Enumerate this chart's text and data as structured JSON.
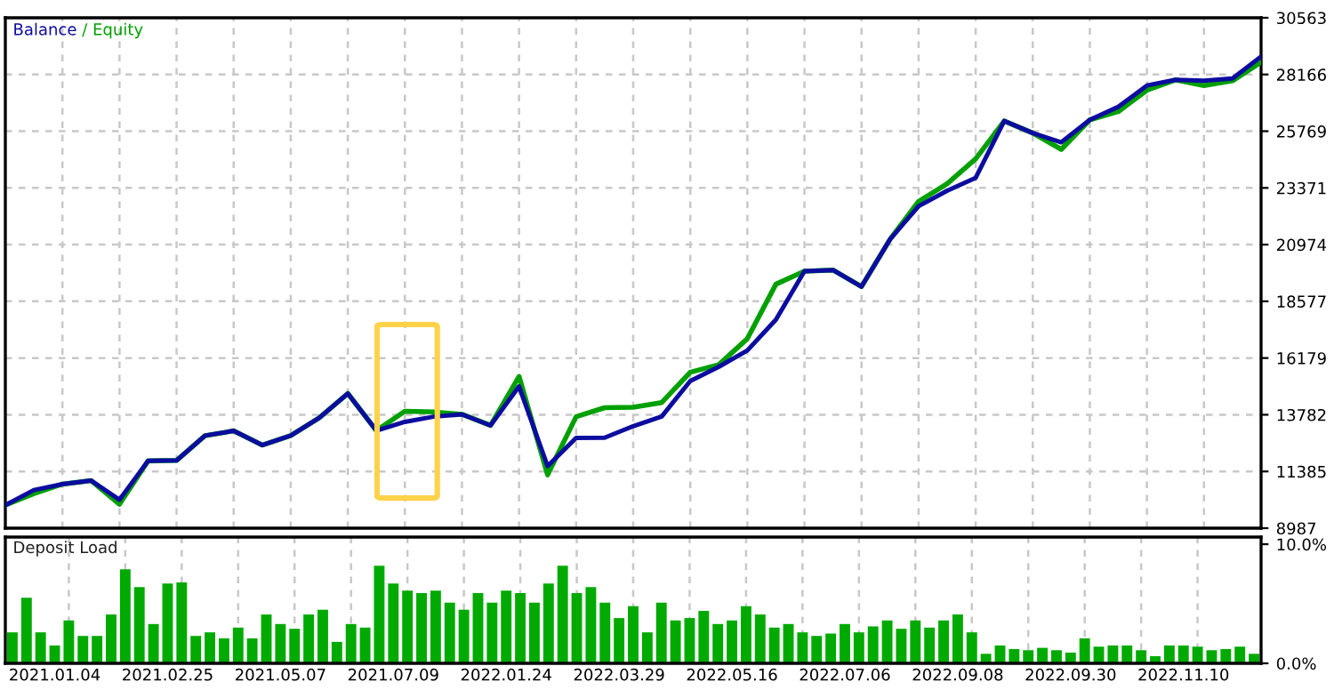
{
  "chart_data": [
    {
      "type": "line",
      "categories": [
        null,
        null,
        null,
        null,
        null,
        null,
        null,
        null,
        null,
        null,
        null,
        null,
        null,
        null,
        null,
        null,
        null,
        null,
        null,
        null,
        null,
        null,
        null,
        null,
        null,
        null,
        null,
        null,
        null,
        null,
        null,
        null,
        null,
        null,
        null,
        null,
        null,
        null,
        null,
        null,
        null,
        null,
        null,
        null,
        null
      ],
      "series": [
        {
          "name": "Balance",
          "color": "#0c0ca0",
          "values": [
            9960,
            10600,
            10850,
            11000,
            10190,
            11830,
            11850,
            12900,
            13100,
            12500,
            12900,
            13650,
            14680,
            13110,
            13480,
            13700,
            13800,
            13330,
            14980,
            11610,
            12800,
            12810,
            13300,
            13710,
            15210,
            15810,
            16500,
            17800,
            19850,
            19900,
            19200,
            21200,
            22600,
            23250,
            23800,
            26200,
            25690,
            25300,
            26250,
            26800,
            27700,
            27940,
            27900,
            28000,
            28920
          ]
        },
        {
          "name": "Equity",
          "color": "#00a000",
          "values": [
            9960,
            10450,
            10850,
            11000,
            10000,
            11830,
            11850,
            12900,
            13100,
            12500,
            12900,
            13650,
            14680,
            13110,
            13930,
            13900,
            13800,
            13330,
            15400,
            11240,
            13700,
            14080,
            14100,
            14300,
            15580,
            15900,
            17000,
            19300,
            19850,
            19900,
            19200,
            21200,
            22800,
            23550,
            24600,
            26200,
            25690,
            25000,
            26250,
            26600,
            27500,
            27940,
            27700,
            27900,
            28690
          ]
        }
      ],
      "annotations": [
        "/"
      ],
      "ylim": [
        8987,
        30563
      ],
      "yticks": [
        8987,
        11385,
        13782,
        16179,
        18577,
        20974,
        23371,
        25769,
        28166,
        30563
      ],
      "grid": true,
      "legend": "top left",
      "tick_labels": "y"
    },
    {
      "type": "bar",
      "title": "Deposit Load",
      "color": "#00aa00",
      "categories": [
        null,
        null,
        null,
        "2021.01.04",
        null,
        null,
        null,
        null,
        null,
        null,
        null,
        "2021.02.25",
        null,
        null,
        null,
        null,
        null,
        null,
        null,
        "2021.05.07",
        null,
        null,
        null,
        null,
        null,
        null,
        null,
        "2021.07.09",
        null,
        null,
        null,
        null,
        null,
        null,
        null,
        "2022.01.24",
        null,
        null,
        null,
        null,
        null,
        null,
        null,
        "2022.03.29",
        null,
        null,
        null,
        null,
        null,
        null,
        null,
        "2022.05.16",
        null,
        null,
        null,
        null,
        null,
        null,
        null,
        "2022.07.06",
        null,
        null,
        null,
        null,
        null,
        null,
        null,
        "2022.09.08",
        null,
        null,
        null,
        null,
        null,
        null,
        null,
        "2022.09.30",
        null,
        null,
        null,
        null,
        null,
        null,
        null,
        "2022.11.10",
        null,
        null,
        null,
        null,
        null
      ],
      "values": [
        2.6,
        5.5,
        2.6,
        1.5,
        3.6,
        2.3,
        2.3,
        4.1,
        7.9,
        6.4,
        3.3,
        6.7,
        6.8,
        2.3,
        2.6,
        2.1,
        3.0,
        2.1,
        4.1,
        3.3,
        2.9,
        4.1,
        4.5,
        1.8,
        3.3,
        3.0,
        8.2,
        6.7,
        6.1,
        5.9,
        6.1,
        5.1,
        4.5,
        5.9,
        5.1,
        6.1,
        5.9,
        5.1,
        6.7,
        8.2,
        5.9,
        6.4,
        5.1,
        3.8,
        4.8,
        2.6,
        5.1,
        3.6,
        3.8,
        4.4,
        3.3,
        3.6,
        4.8,
        4.1,
        3.0,
        3.3,
        2.6,
        2.3,
        2.5,
        3.3,
        2.6,
        3.1,
        3.6,
        2.9,
        3.6,
        3.0,
        3.6,
        4.1,
        2.6,
        0.8,
        1.5,
        1.2,
        1.1,
        1.3,
        1.1,
        0.9,
        2.1,
        1.4,
        1.5,
        1.5,
        1.1,
        0.6,
        1.5,
        1.5,
        1.4,
        1.1,
        1.2,
        1.4,
        0.8
      ],
      "ylim": [
        0,
        10.6
      ],
      "yticks": [
        {
          "value": 0,
          "label": "0.0%"
        },
        {
          "value": 10,
          "label": "10.0%"
        }
      ],
      "grid": "x"
    }
  ]
}
